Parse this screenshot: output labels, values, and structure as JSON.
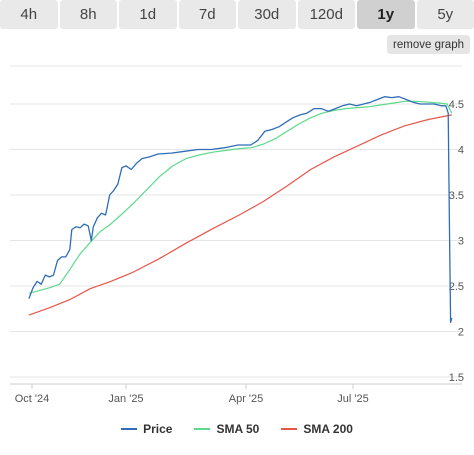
{
  "tabs": [
    {
      "label": "4h",
      "active": false
    },
    {
      "label": "8h",
      "active": false
    },
    {
      "label": "1d",
      "active": false
    },
    {
      "label": "7d",
      "active": false
    },
    {
      "label": "30d",
      "active": false
    },
    {
      "label": "120d",
      "active": false
    },
    {
      "label": "1y",
      "active": true
    },
    {
      "label": "5y",
      "active": false
    }
  ],
  "remove_graph_label": "remove graph",
  "colors": {
    "price": "#2f6db5",
    "sma50": "#5cd98b",
    "sma200": "#e8564a",
    "grid": "#e6e6e6"
  },
  "chart_data": {
    "type": "line",
    "x_ticks": [
      "Oct '24",
      "Jan '25",
      "Apr '25",
      "Jul '25"
    ],
    "y_ticks": [
      "1.5",
      "2",
      "2.5",
      "3",
      "3.5",
      "4",
      "4.5"
    ],
    "ylim": [
      1.5,
      4.6
    ],
    "xlim": [
      "2024-09-28",
      "2025-09-24"
    ],
    "grid": true,
    "legend_position": "bottom",
    "series": [
      {
        "name": "Price",
        "points": [
          [
            "2024-09-28",
            2.36
          ],
          [
            "2024-10-02",
            2.48
          ],
          [
            "2024-10-06",
            2.55
          ],
          [
            "2024-10-10",
            2.52
          ],
          [
            "2024-10-14",
            2.62
          ],
          [
            "2024-10-18",
            2.6
          ],
          [
            "2024-10-22",
            2.62
          ],
          [
            "2024-10-26",
            2.78
          ],
          [
            "2024-10-30",
            2.82
          ],
          [
            "2024-11-03",
            2.82
          ],
          [
            "2024-11-07",
            2.9
          ],
          [
            "2024-11-09",
            3.12
          ],
          [
            "2024-11-13",
            3.15
          ],
          [
            "2024-11-17",
            3.14
          ],
          [
            "2024-11-21",
            3.18
          ],
          [
            "2024-11-25",
            3.16
          ],
          [
            "2024-11-28",
            3.0
          ],
          [
            "2024-11-30",
            3.15
          ],
          [
            "2024-12-04",
            3.25
          ],
          [
            "2024-12-08",
            3.3
          ],
          [
            "2024-12-12",
            3.28
          ],
          [
            "2024-12-16",
            3.5
          ],
          [
            "2024-12-20",
            3.55
          ],
          [
            "2024-12-24",
            3.62
          ],
          [
            "2024-12-28",
            3.8
          ],
          [
            "2025-01-01",
            3.82
          ],
          [
            "2025-01-05",
            3.78
          ],
          [
            "2025-01-09",
            3.85
          ],
          [
            "2025-01-13",
            3.9
          ],
          [
            "2025-01-19",
            3.92
          ],
          [
            "2025-01-25",
            3.95
          ],
          [
            "2025-02-04",
            3.96
          ],
          [
            "2025-02-14",
            3.98
          ],
          [
            "2025-02-24",
            4.0
          ],
          [
            "2025-03-06",
            4.0
          ],
          [
            "2025-03-16",
            4.02
          ],
          [
            "2025-03-26",
            4.05
          ],
          [
            "2025-04-05",
            4.05
          ],
          [
            "2025-04-11",
            4.1
          ],
          [
            "2025-04-17",
            4.2
          ],
          [
            "2025-04-23",
            4.22
          ],
          [
            "2025-04-29",
            4.25
          ],
          [
            "2025-05-05",
            4.3
          ],
          [
            "2025-05-11",
            4.35
          ],
          [
            "2025-05-17",
            4.38
          ],
          [
            "2025-05-23",
            4.4
          ],
          [
            "2025-05-29",
            4.45
          ],
          [
            "2025-06-04",
            4.45
          ],
          [
            "2025-06-10",
            4.42
          ],
          [
            "2025-06-16",
            4.45
          ],
          [
            "2025-06-22",
            4.48
          ],
          [
            "2025-06-28",
            4.5
          ],
          [
            "2025-07-04",
            4.48
          ],
          [
            "2025-07-10",
            4.5
          ],
          [
            "2025-07-16",
            4.52
          ],
          [
            "2025-07-22",
            4.55
          ],
          [
            "2025-07-28",
            4.58
          ],
          [
            "2025-08-03",
            4.57
          ],
          [
            "2025-08-09",
            4.58
          ],
          [
            "2025-08-15",
            4.55
          ],
          [
            "2025-08-21",
            4.52
          ],
          [
            "2025-08-27",
            4.5
          ],
          [
            "2025-09-02",
            4.5
          ],
          [
            "2025-09-08",
            4.5
          ],
          [
            "2025-09-14",
            4.48
          ],
          [
            "2025-09-18",
            4.48
          ],
          [
            "2025-09-20",
            4.4
          ],
          [
            "2025-09-21",
            3.2
          ],
          [
            "2025-09-22",
            2.1
          ],
          [
            "2025-09-23",
            2.15
          ]
        ]
      },
      {
        "name": "SMA 50",
        "points": [
          [
            "2024-09-28",
            2.42
          ],
          [
            "2024-10-08",
            2.45
          ],
          [
            "2024-10-18",
            2.48
          ],
          [
            "2024-10-28",
            2.52
          ],
          [
            "2024-11-07",
            2.68
          ],
          [
            "2024-11-17",
            2.85
          ],
          [
            "2024-11-27",
            2.98
          ],
          [
            "2024-12-07",
            3.1
          ],
          [
            "2024-12-17",
            3.18
          ],
          [
            "2024-12-27",
            3.28
          ],
          [
            "2025-01-06",
            3.4
          ],
          [
            "2025-01-16",
            3.55
          ],
          [
            "2025-01-26",
            3.7
          ],
          [
            "2025-02-05",
            3.82
          ],
          [
            "2025-02-15",
            3.9
          ],
          [
            "2025-02-25",
            3.94
          ],
          [
            "2025-03-07",
            3.97
          ],
          [
            "2025-03-17",
            3.99
          ],
          [
            "2025-03-27",
            4.01
          ],
          [
            "2025-04-06",
            4.02
          ],
          [
            "2025-04-16",
            4.06
          ],
          [
            "2025-04-26",
            4.12
          ],
          [
            "2025-05-06",
            4.2
          ],
          [
            "2025-05-16",
            4.28
          ],
          [
            "2025-05-26",
            4.35
          ],
          [
            "2025-06-05",
            4.4
          ],
          [
            "2025-06-15",
            4.43
          ],
          [
            "2025-06-25",
            4.45
          ],
          [
            "2025-07-05",
            4.46
          ],
          [
            "2025-07-15",
            4.47
          ],
          [
            "2025-07-25",
            4.49
          ],
          [
            "2025-08-04",
            4.51
          ],
          [
            "2025-08-14",
            4.53
          ],
          [
            "2025-08-24",
            4.53
          ],
          [
            "2025-09-03",
            4.52
          ],
          [
            "2025-09-13",
            4.51
          ],
          [
            "2025-09-19",
            4.5
          ],
          [
            "2025-09-23",
            4.4
          ]
        ]
      },
      {
        "name": "SMA 200",
        "points": [
          [
            "2024-09-28",
            2.18
          ],
          [
            "2024-10-18",
            2.26
          ],
          [
            "2024-11-07",
            2.35
          ],
          [
            "2024-11-27",
            2.47
          ],
          [
            "2024-12-17",
            2.55
          ],
          [
            "2025-01-06",
            2.65
          ],
          [
            "2025-01-26",
            2.8
          ],
          [
            "2025-02-15",
            2.97
          ],
          [
            "2025-03-07",
            3.13
          ],
          [
            "2025-03-27",
            3.28
          ],
          [
            "2025-04-16",
            3.43
          ],
          [
            "2025-05-06",
            3.6
          ],
          [
            "2025-05-26",
            3.78
          ],
          [
            "2025-06-15",
            3.92
          ],
          [
            "2025-07-05",
            4.04
          ],
          [
            "2025-07-25",
            4.16
          ],
          [
            "2025-08-14",
            4.26
          ],
          [
            "2025-09-03",
            4.33
          ],
          [
            "2025-09-23",
            4.38
          ]
        ]
      }
    ]
  }
}
